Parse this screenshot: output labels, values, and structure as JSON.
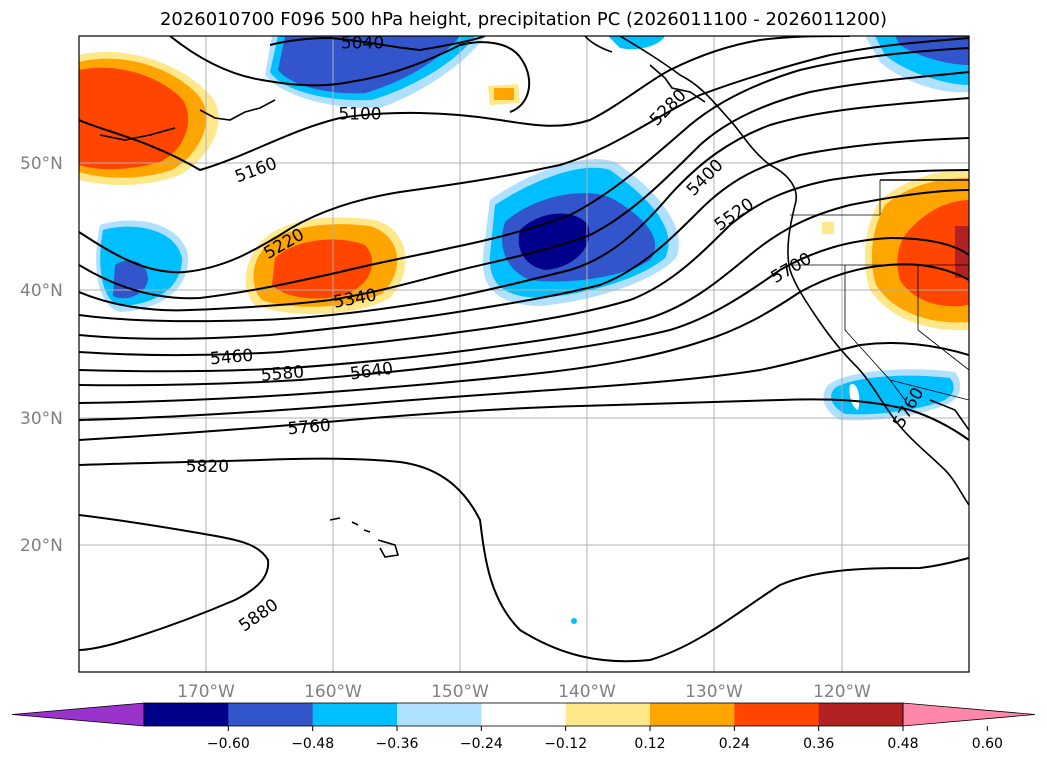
{
  "title": "2026010700 F096 500 hPa height, precipitation PC (2026011100 - 2026011200)",
  "map": {
    "lon_range": [
      -180,
      -110
    ],
    "lat_range": [
      10,
      60
    ],
    "lat_labels": [
      "20°N",
      "30°N",
      "40°N",
      "50°N"
    ],
    "lon_labels": [
      "170°W",
      "160°W",
      "150°W",
      "140°W",
      "130°W",
      "120°W"
    ],
    "grid": true,
    "gridline_color": "#b0b0b0",
    "label_color": "#808080",
    "contour_labels": [
      {
        "text": "5040",
        "lon": -157.7,
        "lat": 59.5,
        "angle": 0
      },
      {
        "text": "5100",
        "lon": -157.9,
        "lat": 53.9,
        "angle": 0
      },
      {
        "text": "5160",
        "lon": -166.1,
        "lat": 49.5,
        "angle": -20
      },
      {
        "text": "5220",
        "lon": -163.9,
        "lat": 43.7,
        "angle": -30
      },
      {
        "text": "5280",
        "lon": -133.7,
        "lat": 54.4,
        "angle": -45
      },
      {
        "text": "5340",
        "lon": -158.3,
        "lat": 39.4,
        "angle": -10
      },
      {
        "text": "5400",
        "lon": -130.8,
        "lat": 48.9,
        "angle": -45
      },
      {
        "text": "5460",
        "lon": -168.0,
        "lat": 34.8,
        "angle": -5
      },
      {
        "text": "5520",
        "lon": -128.5,
        "lat": 46.0,
        "angle": -35
      },
      {
        "text": "5580",
        "lon": -164.0,
        "lat": 33.5,
        "angle": -5
      },
      {
        "text": "5640",
        "lon": -157.0,
        "lat": 33.7,
        "angle": -8
      },
      {
        "text": "5700",
        "lon": -124.0,
        "lat": 41.8,
        "angle": -30
      },
      {
        "text": "5760",
        "lon": -161.9,
        "lat": 29.3,
        "angle": -5
      },
      {
        "text": "5820",
        "lon": -169.9,
        "lat": 26.2,
        "angle": 0
      },
      {
        "text": "5880",
        "lon": -165.9,
        "lat": 14.5,
        "angle": -35
      },
      {
        "text": "5760",
        "lon": -114.8,
        "lat": 30.8,
        "angle": -60
      }
    ]
  },
  "colorbar": {
    "ticks": [
      "−0.60",
      "−0.48",
      "−0.36",
      "−0.24",
      "−0.12",
      "0.12",
      "0.24",
      "0.36",
      "0.48",
      "0.60"
    ],
    "colors": [
      "#9933cc",
      "#00008b",
      "#3355cc",
      "#00bfff",
      "#b0e0ff",
      "#ffffff",
      "#ffe88a",
      "#ffa500",
      "#ff4500",
      "#b22222",
      "#ff88aa"
    ]
  }
}
